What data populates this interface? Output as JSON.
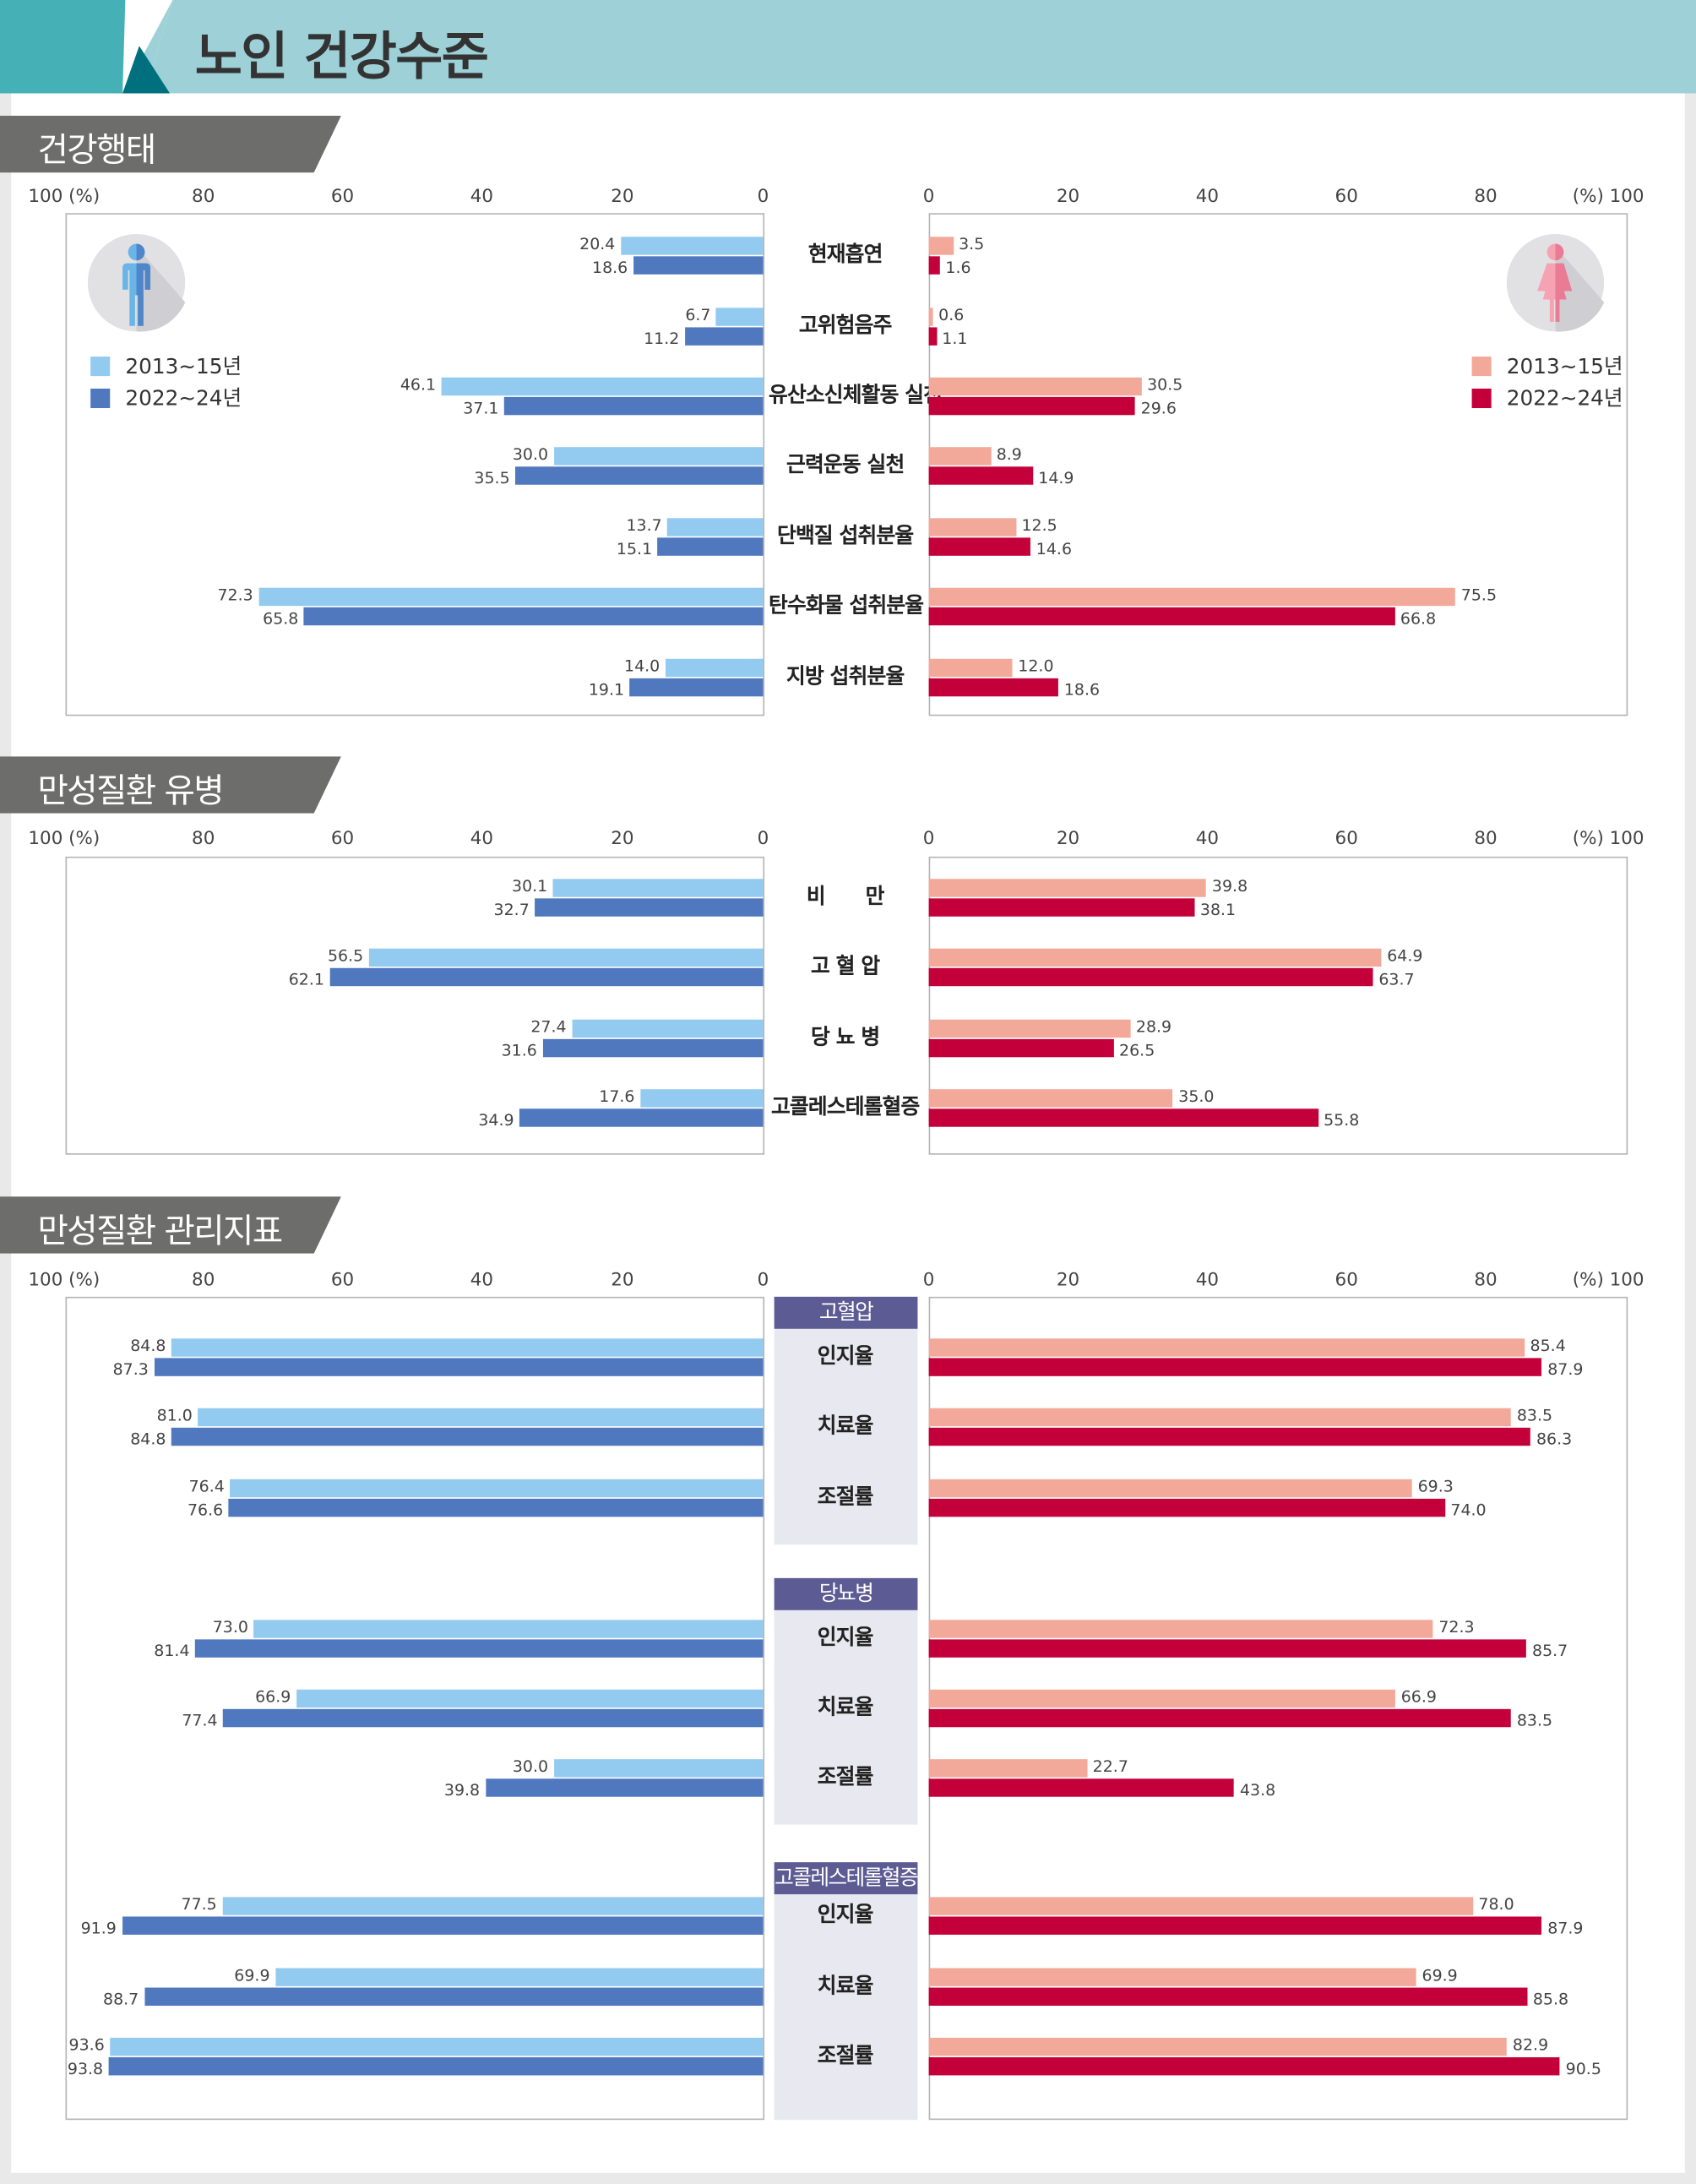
{
  "title": "노인 건강수준",
  "colors": {
    "male_2013": "#93cbf0",
    "male_2022": "#4f78bf",
    "female_2013": "#f3a99a",
    "female_2022": "#c4003b",
    "header": "#9dd1d7",
    "group_header": "#5c5b93"
  },
  "legend": {
    "series1": "2013~15년",
    "series2": "2022~24년"
  },
  "axis": {
    "left_ticks": [
      "100 (%)",
      "80",
      "60",
      "40",
      "20",
      "0"
    ],
    "right_ticks": [
      "0",
      "20",
      "40",
      "60",
      "80",
      "(%) 100"
    ]
  },
  "icons": {
    "male": "male-person-icon",
    "female": "female-person-icon"
  },
  "chart_data": [
    {
      "type": "bar",
      "title": "건강행태",
      "orientation": "horizontal-butterfly",
      "xlim": [
        0,
        100
      ],
      "categories": [
        "현재흡연",
        "고위험음주",
        "유산소신체활동 실천",
        "근력운동 실천",
        "단백질 섭취분율",
        "탄수화물 섭취분율",
        "지방 섭취분율"
      ],
      "male": [
        {
          "name": "2013~15년",
          "values": [
            20.4,
            6.7,
            46.1,
            30.0,
            13.7,
            72.3,
            14.0
          ]
        },
        {
          "name": "2022~24년",
          "values": [
            18.6,
            11.2,
            37.1,
            35.5,
            15.1,
            65.8,
            19.1
          ]
        }
      ],
      "female": [
        {
          "name": "2013~15년",
          "values": [
            3.5,
            0.6,
            30.5,
            8.9,
            12.5,
            75.5,
            12.0
          ]
        },
        {
          "name": "2022~24년",
          "values": [
            1.6,
            1.1,
            29.6,
            14.9,
            14.6,
            66.8,
            18.6
          ]
        }
      ]
    },
    {
      "type": "bar",
      "title": "만성질환 유병",
      "orientation": "horizontal-butterfly",
      "xlim": [
        0,
        100
      ],
      "categories": [
        "비　　만",
        "고 혈 압",
        "당 뇨 병",
        "고콜레스테롤혈증"
      ],
      "male": [
        {
          "name": "2013~15년",
          "values": [
            30.1,
            56.5,
            27.4,
            17.6
          ]
        },
        {
          "name": "2022~24년",
          "values": [
            32.7,
            62.1,
            31.6,
            34.9
          ]
        }
      ],
      "female": [
        {
          "name": "2013~15년",
          "values": [
            39.8,
            64.9,
            28.9,
            35.0
          ]
        },
        {
          "name": "2022~24년",
          "values": [
            38.1,
            63.7,
            26.5,
            55.8
          ]
        }
      ]
    },
    {
      "type": "bar",
      "title": "만성질환 관리지표",
      "orientation": "horizontal-butterfly",
      "xlim": [
        0,
        100
      ],
      "groups": [
        "고혈압",
        "당뇨병",
        "고콜레스테롤혈증"
      ],
      "categories": [
        "인지율",
        "치료율",
        "조절률",
        "인지율",
        "치료율",
        "조절률",
        "인지율",
        "치료율",
        "조절률"
      ],
      "male": [
        {
          "name": "2013~15년",
          "values": [
            84.8,
            81.0,
            76.4,
            73.0,
            66.9,
            30.0,
            77.5,
            69.9,
            93.6
          ]
        },
        {
          "name": "2022~24년",
          "values": [
            87.3,
            84.8,
            76.6,
            81.4,
            77.4,
            39.8,
            91.9,
            88.7,
            93.8
          ]
        }
      ],
      "female": [
        {
          "name": "2013~15년",
          "values": [
            85.4,
            83.5,
            69.3,
            72.3,
            66.9,
            22.7,
            78.0,
            69.9,
            82.9
          ]
        },
        {
          "name": "2022~24년",
          "values": [
            87.9,
            86.3,
            74.0,
            85.7,
            83.5,
            43.8,
            87.9,
            85.8,
            90.5
          ]
        }
      ]
    }
  ]
}
